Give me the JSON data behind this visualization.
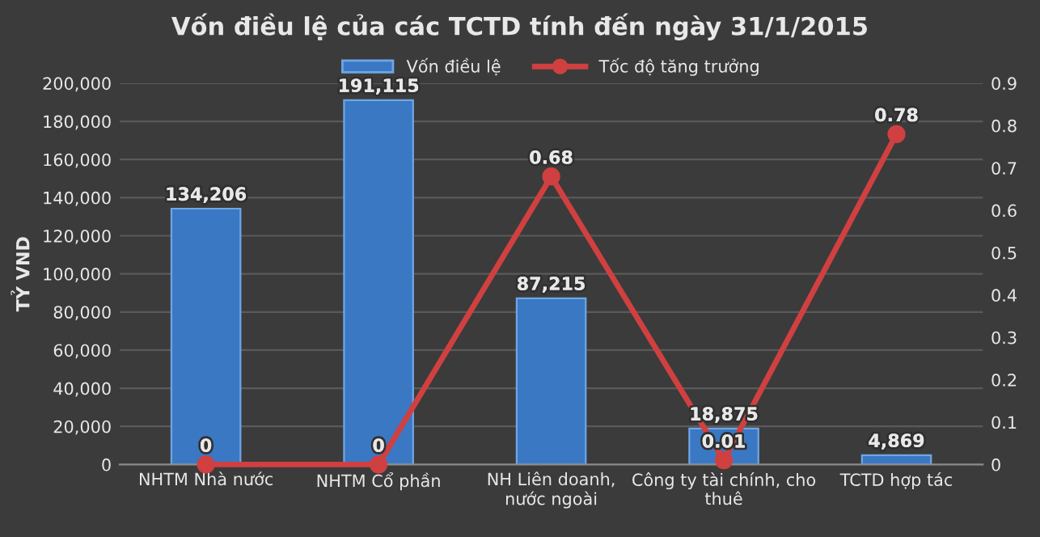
{
  "chart_data": {
    "type": "bar",
    "title": "Vốn điều lệ của các TCTD tính đến ngày 31/1/2015",
    "ylabel": "TỶ VND",
    "categories": [
      "NHTM Nhà nước",
      "NHTM Cổ phần",
      "NH Liên doanh,\nnước ngoài",
      "Công ty tài chính, cho\nthuê",
      "TCTD hợp tác"
    ],
    "series": [
      {
        "name": "Vốn điều lệ",
        "color": "#3a78c4",
        "values": [
          134206,
          191115,
          87215,
          18875,
          4869
        ],
        "value_labels": [
          "134,206",
          "191,115",
          "87,215",
          "18,875",
          "4,869"
        ]
      },
      {
        "name": "Tốc độ tăng trưởng",
        "type": "line",
        "axis": "y2",
        "color": "#d04040",
        "marker": "circle",
        "values": [
          0,
          0,
          0.68,
          0.01,
          0.78
        ]
      }
    ],
    "data_labels": true,
    "ylim": [
      0,
      200000
    ],
    "yticks": [
      0,
      {
        "value": 20000,
        "label": "20,000"
      },
      {
        "value": 40000,
        "label": "40,000"
      },
      {
        "value": 60000,
        "label": "60,000"
      },
      {
        "value": 80000,
        "label": "80,000"
      },
      {
        "value": 100000,
        "label": "100,000"
      },
      {
        "value": 120000,
        "label": "120,000"
      },
      {
        "value": 140000,
        "label": "140,000"
      },
      {
        "value": 160000,
        "label": "160,000"
      },
      {
        "value": 180000,
        "label": "180,000"
      },
      {
        "value": 200000,
        "label": "200,000"
      }
    ],
    "y2lim": [
      0,
      0.9
    ],
    "y2ticks": [
      0,
      0.1,
      0.2,
      0.3,
      0.4,
      0.5,
      0.6,
      0.7,
      0.8,
      0.9
    ],
    "grid": "y",
    "legend": "top"
  }
}
